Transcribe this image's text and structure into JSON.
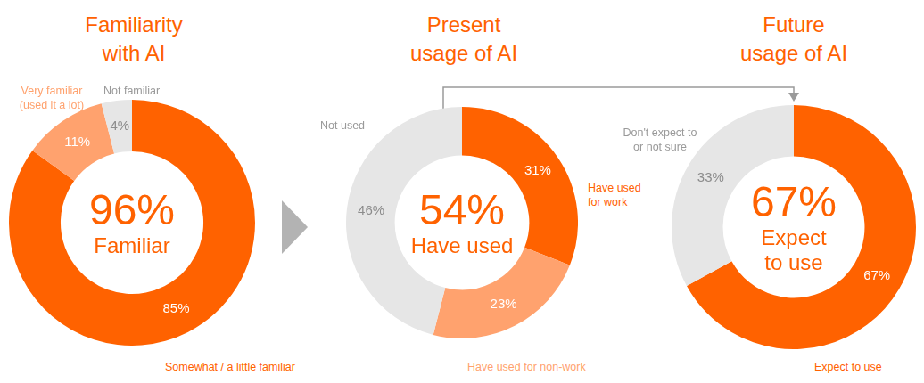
{
  "chart_data": [
    {
      "type": "doughnut",
      "title": [
        "Familiarity",
        "with AI"
      ],
      "center": {
        "value": 96,
        "label": "96%",
        "text": [
          "Familiar"
        ]
      },
      "categories": [
        [
          "Somewhat / a little familiar"
        ],
        [
          "Very familiar",
          "(used it a lot)"
        ],
        [
          "Not familiar"
        ]
      ],
      "values": [
        85,
        11,
        4
      ],
      "value_labels": [
        "85%",
        "11%",
        "4%"
      ],
      "colors": [
        "#ff6200",
        "#ffa26e",
        "#e6e6e6"
      ],
      "data_labels": true
    },
    {
      "type": "doughnut",
      "title": [
        "Present",
        "usage of AI"
      ],
      "center": {
        "value": 54,
        "label": "54%",
        "text": [
          "Have used"
        ]
      },
      "categories": [
        [
          "Have used",
          "for work"
        ],
        [
          "Have used for non-work"
        ],
        [
          "Not used"
        ]
      ],
      "values": [
        31,
        23,
        46
      ],
      "value_labels": [
        "31%",
        "23%",
        "46%"
      ],
      "colors": [
        "#ff6200",
        "#ffa26e",
        "#e6e6e6"
      ],
      "data_labels": true
    },
    {
      "type": "doughnut",
      "title": [
        "Future",
        "usage of AI"
      ],
      "center": {
        "value": 67,
        "label": "67%",
        "text": [
          "Expect",
          "to use"
        ]
      },
      "categories": [
        [
          "Expect to use"
        ],
        [
          "Don't expect to",
          "or not sure"
        ]
      ],
      "values": [
        67,
        33
      ],
      "value_labels": [
        "67%",
        "33%"
      ],
      "colors": [
        "#ff6200",
        "#e6e6e6"
      ],
      "data_labels": true
    }
  ]
}
